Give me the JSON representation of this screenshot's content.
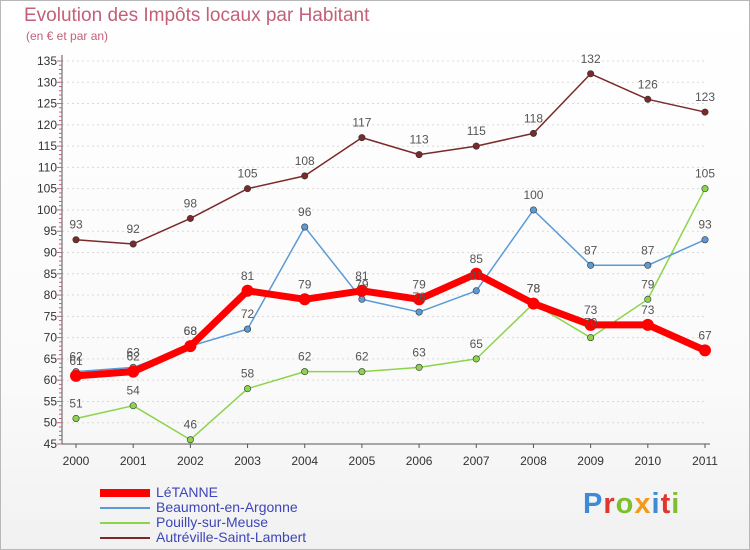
{
  "title": "Evolution des Impôts locaux par Habitant",
  "subtitle": "(en € et par an)",
  "logo": {
    "letters": [
      "P",
      "r",
      "o",
      "x",
      "i",
      "t",
      "i"
    ],
    "colors": [
      "#3d8ad6",
      "#e2352d",
      "#7fbf2f",
      "#f29a1a",
      "#3d8ad6",
      "#e2352d",
      "#7fbf2f"
    ]
  },
  "chart_data": {
    "type": "line",
    "title": "Evolution des Impôts locaux par Habitant",
    "ylabel": "(en € et par an)",
    "xlabel": "",
    "x": [
      "2000",
      "2001",
      "2002",
      "2003",
      "2004",
      "2005",
      "2006",
      "2007",
      "2008",
      "2009",
      "2010",
      "2011"
    ],
    "ylim": [
      45,
      135
    ],
    "yticks": [
      45,
      50,
      55,
      60,
      65,
      70,
      75,
      80,
      85,
      90,
      95,
      100,
      105,
      110,
      115,
      120,
      125,
      130,
      135
    ],
    "series": [
      {
        "name": "LéTANNE",
        "color": "#ff0000",
        "values": [
          61,
          62,
          68,
          81,
          79,
          81,
          79,
          85,
          78,
          73,
          73,
          67
        ]
      },
      {
        "name": "Beaumont-en-Argonne",
        "color": "#5b9bd5",
        "values": [
          62,
          63,
          68,
          72,
          96,
          79,
          76,
          81,
          100,
          87,
          87,
          93
        ]
      },
      {
        "name": "Pouilly-sur-Meuse",
        "color": "#8cd44a",
        "values": [
          51,
          54,
          46,
          58,
          62,
          62,
          63,
          65,
          78,
          70,
          79,
          105
        ]
      },
      {
        "name": "Autréville-Saint-Lambert",
        "color": "#7a2a2a",
        "values": [
          93,
          92,
          98,
          105,
          108,
          117,
          113,
          115,
          118,
          132,
          126,
          123
        ]
      }
    ]
  }
}
